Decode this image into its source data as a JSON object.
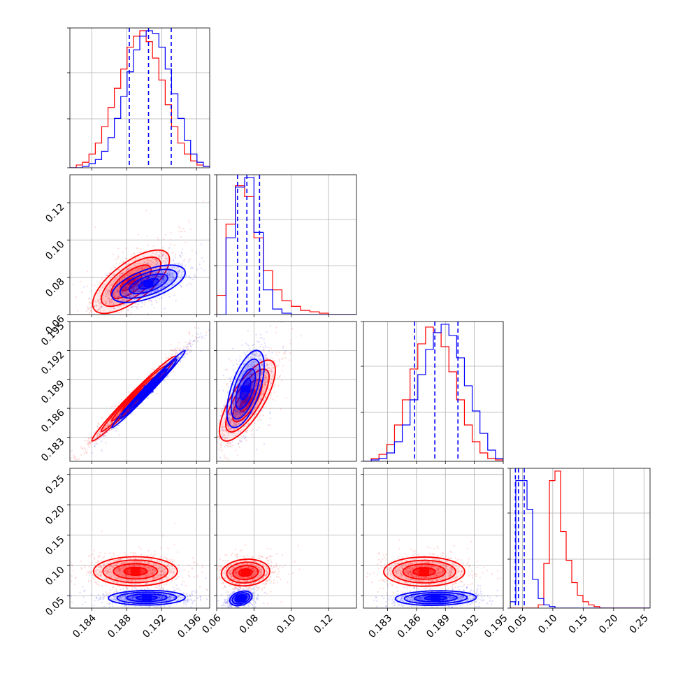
{
  "chart_data": {
    "type": "corner",
    "grid": true,
    "colors": {
      "series_a": "#ff0000",
      "series_b": "#0000ff"
    },
    "parameters": [
      {
        "range": [
          0.1815,
          0.1975
        ],
        "ticks": [
          0.184,
          0.188,
          0.192,
          0.196
        ],
        "tick_labels": [
          "0.184",
          "0.188",
          "0.192",
          "0.196"
        ]
      },
      {
        "range": [
          0.06,
          0.135
        ],
        "ticks": [
          0.06,
          0.08,
          0.1,
          0.12
        ],
        "tick_labels": [
          "0.06",
          "0.08",
          "0.10",
          "0.12"
        ]
      },
      {
        "range": [
          0.1805,
          0.195
        ],
        "ticks": [
          0.183,
          0.186,
          0.189,
          0.192,
          0.195
        ],
        "tick_labels": [
          "0.183",
          "0.186",
          "0.189",
          "0.192",
          "0.195"
        ]
      },
      {
        "range": [
          0.03,
          0.26
        ],
        "ticks": [
          0.05,
          0.1,
          0.15,
          0.2,
          0.25
        ],
        "tick_labels": [
          "0.05",
          "0.10",
          "0.15",
          "0.20",
          "0.25"
        ]
      }
    ],
    "quantiles_series_b": [
      [
        0.1883,
        0.1905,
        0.1931
      ],
      [
        0.0712,
        0.0762,
        0.083
      ],
      [
        0.1858,
        0.1879,
        0.1903
      ],
      [
        0.0385,
        0.0435,
        0.053
      ]
    ],
    "histograms": [
      {
        "edges": [
          0.1815,
          0.1975
        ],
        "series_a": [
          0,
          2,
          4,
          10,
          18,
          30,
          44,
          58,
          72,
          88,
          96,
          100,
          92,
          80,
          64,
          46,
          30,
          18,
          10,
          5,
          2,
          1
        ],
        "series_b": [
          0,
          0,
          1,
          3,
          6,
          12,
          22,
          36,
          52,
          70,
          86,
          96,
          100,
          98,
          88,
          72,
          54,
          36,
          20,
          10,
          4,
          1
        ]
      },
      {
        "edges": [
          0.06,
          0.135
        ],
        "series_a": [
          14,
          66,
          94,
          86,
          56,
          32,
          18,
          10,
          6,
          3,
          2,
          1,
          0,
          0,
          0
        ],
        "series_b": [
          0,
          56,
          93,
          100,
          60,
          18,
          4,
          1,
          0,
          0,
          0,
          0,
          0,
          0,
          0
        ]
      },
      {
        "edges": [
          0.1805,
          0.195
        ],
        "series_a": [
          0,
          2,
          5,
          12,
          26,
          44,
          66,
          84,
          96,
          92,
          82,
          64,
          44,
          26,
          14,
          6,
          2,
          1
        ],
        "series_b": [
          0,
          1,
          2,
          6,
          14,
          26,
          44,
          62,
          80,
          92,
          98,
          90,
          74,
          54,
          36,
          20,
          8,
          2
        ]
      },
      {
        "edges": [
          0.03,
          0.26
        ],
        "series_a": [
          0,
          0,
          0,
          0,
          0,
          2,
          28,
          80,
          86,
          48,
          30,
          16,
          8,
          4,
          2,
          1,
          0,
          0,
          0,
          0,
          0,
          0,
          0,
          0,
          0
        ],
        "series_b": [
          4,
          80,
          80,
          62,
          18,
          6,
          2,
          1,
          0,
          0,
          0,
          0,
          0,
          0,
          0,
          0,
          0,
          0,
          0,
          0,
          0,
          0,
          0,
          0,
          0
        ]
      }
    ],
    "joint": [
      {
        "x_param": 0,
        "y_param": 1,
        "series_a": {
          "center": [
            0.1885,
            0.0776
          ],
          "sx": 0.0022,
          "sy": 0.0085,
          "rho": 0.7,
          "n": 1100
        },
        "series_b": {
          "center": [
            0.1905,
            0.0765
          ],
          "sx": 0.0021,
          "sy": 0.005,
          "rho": 0.6,
          "n": 900
        }
      },
      {
        "x_param": 0,
        "y_param": 2,
        "series_a": {
          "center": [
            0.1888,
            0.187
          ],
          "sx": 0.0024,
          "sy": 0.0022,
          "rho": 0.985,
          "n": 1100
        },
        "series_b": {
          "center": [
            0.1905,
            0.188
          ],
          "sx": 0.0021,
          "sy": 0.002,
          "rho": 0.99,
          "n": 900
        }
      },
      {
        "x_param": 0,
        "y_param": 3,
        "series_a": {
          "center": [
            0.189,
            0.0905
          ],
          "sx": 0.0024,
          "sy": 0.012,
          "rho": 0.0,
          "n": 1100
        },
        "series_b": {
          "center": [
            0.1903,
            0.047
          ],
          "sx": 0.0022,
          "sy": 0.006,
          "rho": 0.05,
          "n": 900
        }
      },
      {
        "x_param": 1,
        "y_param": 2,
        "series_a": {
          "center": [
            0.0765,
            0.1868
          ],
          "sx": 0.0075,
          "sy": 0.0021,
          "rho": 0.75,
          "n": 1100
        },
        "series_b": {
          "center": [
            0.0755,
            0.188
          ],
          "sx": 0.005,
          "sy": 0.002,
          "rho": 0.6,
          "n": 900
        }
      },
      {
        "x_param": 1,
        "y_param": 3,
        "series_a": {
          "center": [
            0.0755,
            0.0885
          ],
          "sx": 0.0065,
          "sy": 0.011,
          "rho": 0.1,
          "n": 1100
        },
        "series_b": {
          "center": [
            0.073,
            0.046
          ],
          "sx": 0.003,
          "sy": 0.006,
          "rho": 0.3,
          "n": 900
        }
      },
      {
        "x_param": 2,
        "y_param": 3,
        "series_a": {
          "center": [
            0.1868,
            0.09
          ],
          "sx": 0.0021,
          "sy": 0.012,
          "rho": 0.0,
          "n": 1100
        },
        "series_b": {
          "center": [
            0.188,
            0.0465
          ],
          "sx": 0.0021,
          "sy": 0.006,
          "rho": 0.1,
          "n": 900
        }
      }
    ]
  }
}
